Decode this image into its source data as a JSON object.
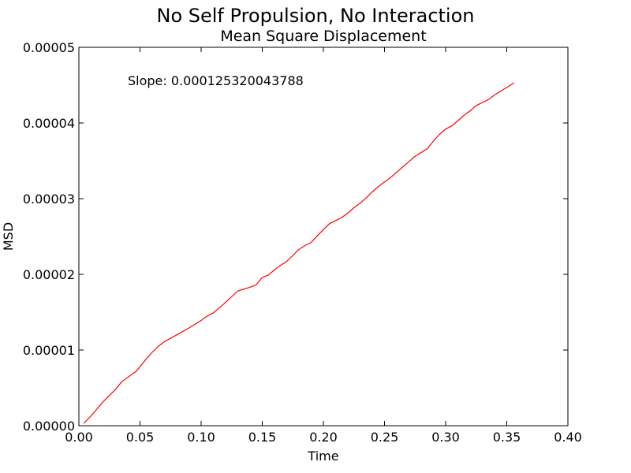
{
  "suptitle": "No Self Propulsion, No Interaction",
  "chart_data": {
    "type": "line",
    "title": "Mean Square Displacement",
    "xlabel": "Time",
    "ylabel": "MSD",
    "xlim": [
      0.0,
      0.4
    ],
    "ylim": [
      0.0,
      5e-05
    ],
    "xticks": [
      "0.00",
      "0.05",
      "0.10",
      "0.15",
      "0.20",
      "0.25",
      "0.30",
      "0.35",
      "0.40"
    ],
    "yticks": [
      "0.00000",
      "0.00001",
      "0.00002",
      "0.00003",
      "0.00004",
      "0.00005"
    ],
    "xtick_values": [
      0.0,
      0.05,
      0.1,
      0.15,
      0.2,
      0.25,
      0.3,
      0.35,
      0.4
    ],
    "ytick_values": [
      0.0,
      1e-05,
      2e-05,
      3e-05,
      4e-05,
      5e-05
    ],
    "annotation": "Slope: 0.000125320043788",
    "grid": false,
    "series": [
      {
        "color": "#ff0000",
        "x": [
          0.004,
          0.01,
          0.02,
          0.03,
          0.035,
          0.04,
          0.047,
          0.055,
          0.06,
          0.065,
          0.07,
          0.08,
          0.09,
          0.1,
          0.105,
          0.11,
          0.12,
          0.13,
          0.14,
          0.145,
          0.15,
          0.155,
          0.16,
          0.165,
          0.17,
          0.175,
          0.18,
          0.185,
          0.19,
          0.195,
          0.2,
          0.205,
          0.21,
          0.215,
          0.22,
          0.225,
          0.23,
          0.235,
          0.24,
          0.245,
          0.25,
          0.255,
          0.26,
          0.265,
          0.27,
          0.275,
          0.28,
          0.285,
          0.29,
          0.295,
          0.3,
          0.305,
          0.31,
          0.315,
          0.32,
          0.325,
          0.33,
          0.335,
          0.34,
          0.345,
          0.35,
          0.356
        ],
        "y": [
          3e-07,
          1.3e-06,
          3.2e-06,
          4.8e-06,
          5.8e-06,
          6.4e-06,
          7.2e-06,
          8.8e-06,
          9.7e-06,
          1.05e-05,
          1.11e-05,
          1.2e-05,
          1.29e-05,
          1.39e-05,
          1.45e-05,
          1.49e-05,
          1.63e-05,
          1.78e-05,
          1.83e-05,
          1.86e-05,
          1.96e-05,
          1.99e-05,
          2.06e-05,
          2.12e-05,
          2.17e-05,
          2.25e-05,
          2.33e-05,
          2.38e-05,
          2.42e-05,
          2.51e-05,
          2.59e-05,
          2.67e-05,
          2.71e-05,
          2.75e-05,
          2.81e-05,
          2.88e-05,
          2.94e-05,
          3.01e-05,
          3.09e-05,
          3.16e-05,
          3.22e-05,
          3.28e-05,
          3.35e-05,
          3.42e-05,
          3.49e-05,
          3.56e-05,
          3.61e-05,
          3.66e-05,
          3.76e-05,
          3.85e-05,
          3.92e-05,
          3.96e-05,
          4.03e-05,
          4.1e-05,
          4.16e-05,
          4.23e-05,
          4.27e-05,
          4.31e-05,
          4.37e-05,
          4.42e-05,
          4.47e-05,
          4.53e-05
        ]
      }
    ]
  }
}
